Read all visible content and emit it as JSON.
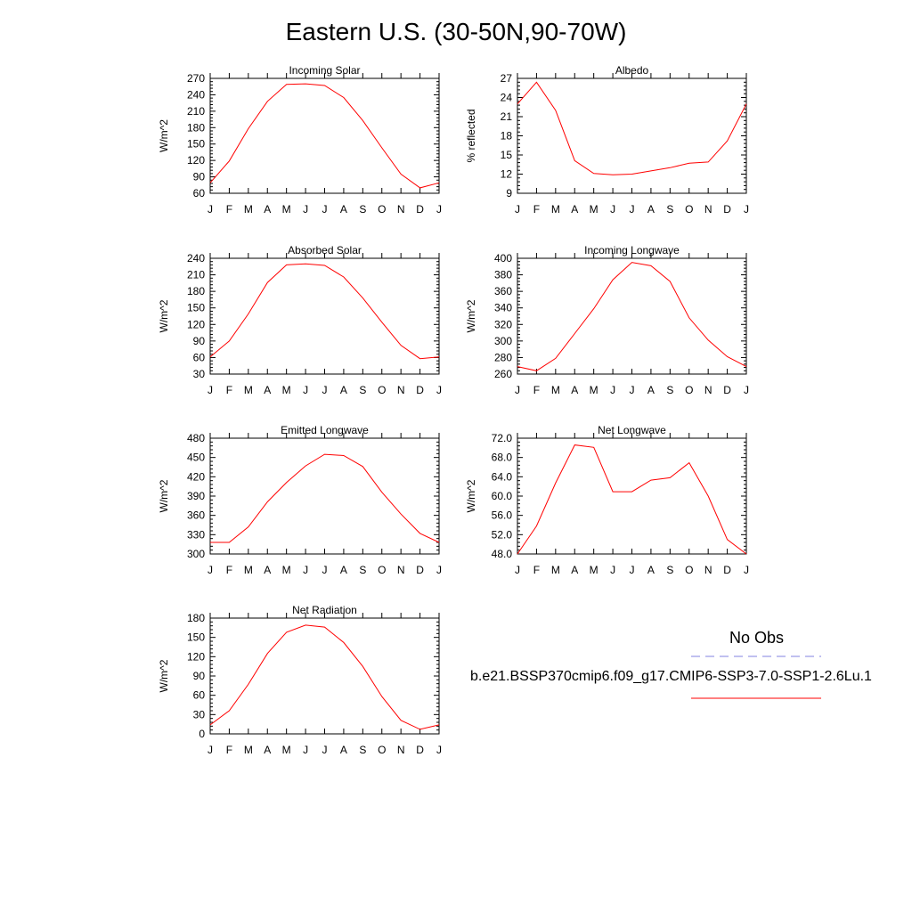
{
  "figure": {
    "title": "Eastern U.S. (30-50N,90-70W)"
  },
  "legend": {
    "obs_label": "No Obs",
    "obs_color": "#8080e0",
    "model_label": "b.e21.BSSP370cmip6.f09_g17.CMIP6-SSP3-7.0-SSP1-2.6Lu.1",
    "model_color": "#ff0000"
  },
  "chart_data": [
    {
      "type": "line",
      "title": "Incoming Solar",
      "ylabel": "W/m^2",
      "x": [
        "J",
        "F",
        "M",
        "A",
        "M",
        "J",
        "J",
        "A",
        "S",
        "O",
        "N",
        "D",
        "J"
      ],
      "ylim": [
        60,
        270
      ],
      "yticks": [
        "60",
        "90",
        "120",
        "150",
        "180",
        "210",
        "240",
        "270"
      ],
      "series": [
        {
          "color": "#ff0000",
          "values": [
            79,
            119,
            178,
            228,
            259,
            260,
            257,
            235,
            193,
            143,
            95,
            70,
            79
          ]
        }
      ]
    },
    {
      "type": "line",
      "title": "Albedo",
      "ylabel": "% reflected",
      "x": [
        "J",
        "F",
        "M",
        "A",
        "M",
        "J",
        "J",
        "A",
        "S",
        "O",
        "N",
        "D",
        "J"
      ],
      "ylim": [
        9,
        27
      ],
      "yticks": [
        "9",
        "12",
        "15",
        "18",
        "21",
        "24",
        "27"
      ],
      "series": [
        {
          "color": "#ff0000",
          "values": [
            23.0,
            26.4,
            22.0,
            14.1,
            12.1,
            11.9,
            12.0,
            12.5,
            13.0,
            13.7,
            13.9,
            17.2,
            23.0
          ]
        }
      ]
    },
    {
      "type": "line",
      "title": "Absorbed Solar",
      "ylabel": "W/m^2",
      "x": [
        "J",
        "F",
        "M",
        "A",
        "M",
        "J",
        "J",
        "A",
        "S",
        "O",
        "N",
        "D",
        "J"
      ],
      "ylim": [
        30,
        240
      ],
      "yticks": [
        "30",
        "60",
        "90",
        "120",
        "150",
        "180",
        "210",
        "240"
      ],
      "series": [
        {
          "color": "#ff0000",
          "values": [
            61,
            90,
            139,
            196,
            228,
            230,
            227,
            206,
            168,
            124,
            82,
            58,
            61
          ]
        }
      ]
    },
    {
      "type": "line",
      "title": "Incoming Longwave",
      "ylabel": "W/m^2",
      "x": [
        "J",
        "F",
        "M",
        "A",
        "M",
        "J",
        "J",
        "A",
        "S",
        "O",
        "N",
        "D",
        "J"
      ],
      "ylim": [
        260,
        400
      ],
      "yticks": [
        "260",
        "280",
        "300",
        "320",
        "340",
        "360",
        "380",
        "400"
      ],
      "series": [
        {
          "color": "#ff0000",
          "values": [
            269,
            264,
            279,
            309,
            339,
            374,
            395,
            391,
            372,
            328,
            301,
            281,
            269
          ]
        }
      ]
    },
    {
      "type": "line",
      "title": "Emitted Longwave",
      "ylabel": "W/m^2",
      "x": [
        "J",
        "F",
        "M",
        "A",
        "M",
        "J",
        "J",
        "A",
        "S",
        "O",
        "N",
        "D",
        "J"
      ],
      "ylim": [
        300,
        480
      ],
      "yticks": [
        "300",
        "330",
        "360",
        "390",
        "420",
        "450",
        "480"
      ],
      "series": [
        {
          "color": "#ff0000",
          "values": [
            318,
            318,
            342,
            381,
            411,
            437,
            455,
            453,
            436,
            396,
            362,
            332,
            318
          ]
        }
      ]
    },
    {
      "type": "line",
      "title": "Net Longwave",
      "ylabel": "W/m^2",
      "x": [
        "J",
        "F",
        "M",
        "A",
        "M",
        "J",
        "J",
        "A",
        "S",
        "O",
        "N",
        "D",
        "J"
      ],
      "ylim": [
        48,
        72
      ],
      "yticks": [
        "48.0",
        "52.0",
        "56.0",
        "60.0",
        "64.0",
        "68.0",
        "72.0"
      ],
      "series": [
        {
          "color": "#ff0000",
          "values": [
            48.0,
            53.8,
            62.7,
            70.6,
            70.1,
            60.9,
            60.9,
            63.3,
            63.8,
            66.9,
            60.0,
            51.0,
            48.0
          ]
        }
      ]
    },
    {
      "type": "line",
      "title": "Net Radiation",
      "ylabel": "W/m^2",
      "x": [
        "J",
        "F",
        "M",
        "A",
        "M",
        "J",
        "J",
        "A",
        "S",
        "O",
        "N",
        "D",
        "J"
      ],
      "ylim": [
        0,
        180
      ],
      "yticks": [
        "0",
        "30",
        "60",
        "90",
        "120",
        "150",
        "180"
      ],
      "series": [
        {
          "color": "#ff0000",
          "values": [
            14,
            36,
            77,
            125,
            158,
            169,
            166,
            142,
            105,
            58,
            21,
            7,
            14
          ]
        }
      ]
    }
  ]
}
